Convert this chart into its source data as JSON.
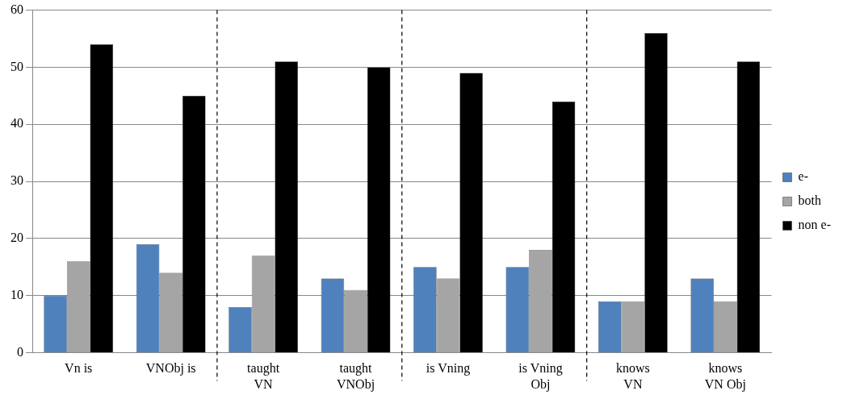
{
  "chart_data": {
    "type": "bar",
    "categories": [
      "Vn is",
      "VNObj is",
      "taught VN",
      "taught VNObj",
      "is Vning",
      "is Vning Obj",
      "knows VN",
      "knows VN Obj"
    ],
    "series": [
      {
        "name": "e-",
        "color": "#4f81bd",
        "values": [
          10,
          19,
          8,
          13,
          15,
          15,
          9,
          13
        ]
      },
      {
        "name": "both",
        "color": "#a5a5a5",
        "values": [
          16,
          14,
          17,
          11,
          13,
          18,
          9,
          9
        ]
      },
      {
        "name": "non e-",
        "color": "#000000",
        "values": [
          54,
          45,
          51,
          50,
          49,
          44,
          56,
          51
        ]
      }
    ],
    "ylim": [
      0,
      60
    ],
    "yticks": [
      0,
      10,
      20,
      30,
      40,
      50,
      60
    ],
    "grid": "y",
    "legend": "right"
  }
}
